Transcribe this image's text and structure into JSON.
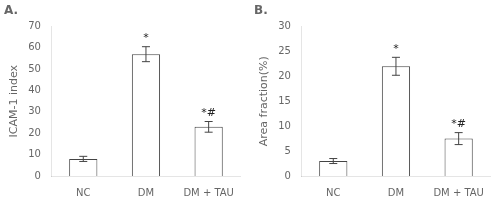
{
  "chart_data": [
    {
      "type": "bar",
      "title": "A.",
      "categories": [
        "NC",
        "DM",
        "DM + TAU"
      ],
      "values": [
        8.0,
        57.0,
        23.0
      ],
      "errors": [
        1.2,
        3.5,
        2.5
      ],
      "y_label": "ICAM-1 index",
      "ylim": [
        0,
        70
      ],
      "yticks": [
        0,
        10,
        20,
        30,
        40,
        50,
        60,
        70
      ],
      "annotations": [
        {
          "category": "DM",
          "text": "*"
        },
        {
          "category": "DM + TAU",
          "text": "*#"
        }
      ],
      "color": "white",
      "grid": false
    },
    {
      "type": "bar",
      "title": "B.",
      "categories": [
        "NC",
        "DM",
        "DM + TAU"
      ],
      "values": [
        3.0,
        22.0,
        7.5
      ],
      "errors": [
        0.5,
        1.8,
        1.2
      ],
      "y_label": "Area fraction(%)",
      "ylim": [
        0,
        30
      ],
      "yticks": [
        0,
        5,
        10,
        15,
        20,
        25,
        30
      ],
      "annotations": [
        {
          "category": "DM",
          "text": "*"
        },
        {
          "category": "DM + TAU",
          "text": "*#"
        }
      ],
      "color": "white",
      "grid": false
    }
  ]
}
